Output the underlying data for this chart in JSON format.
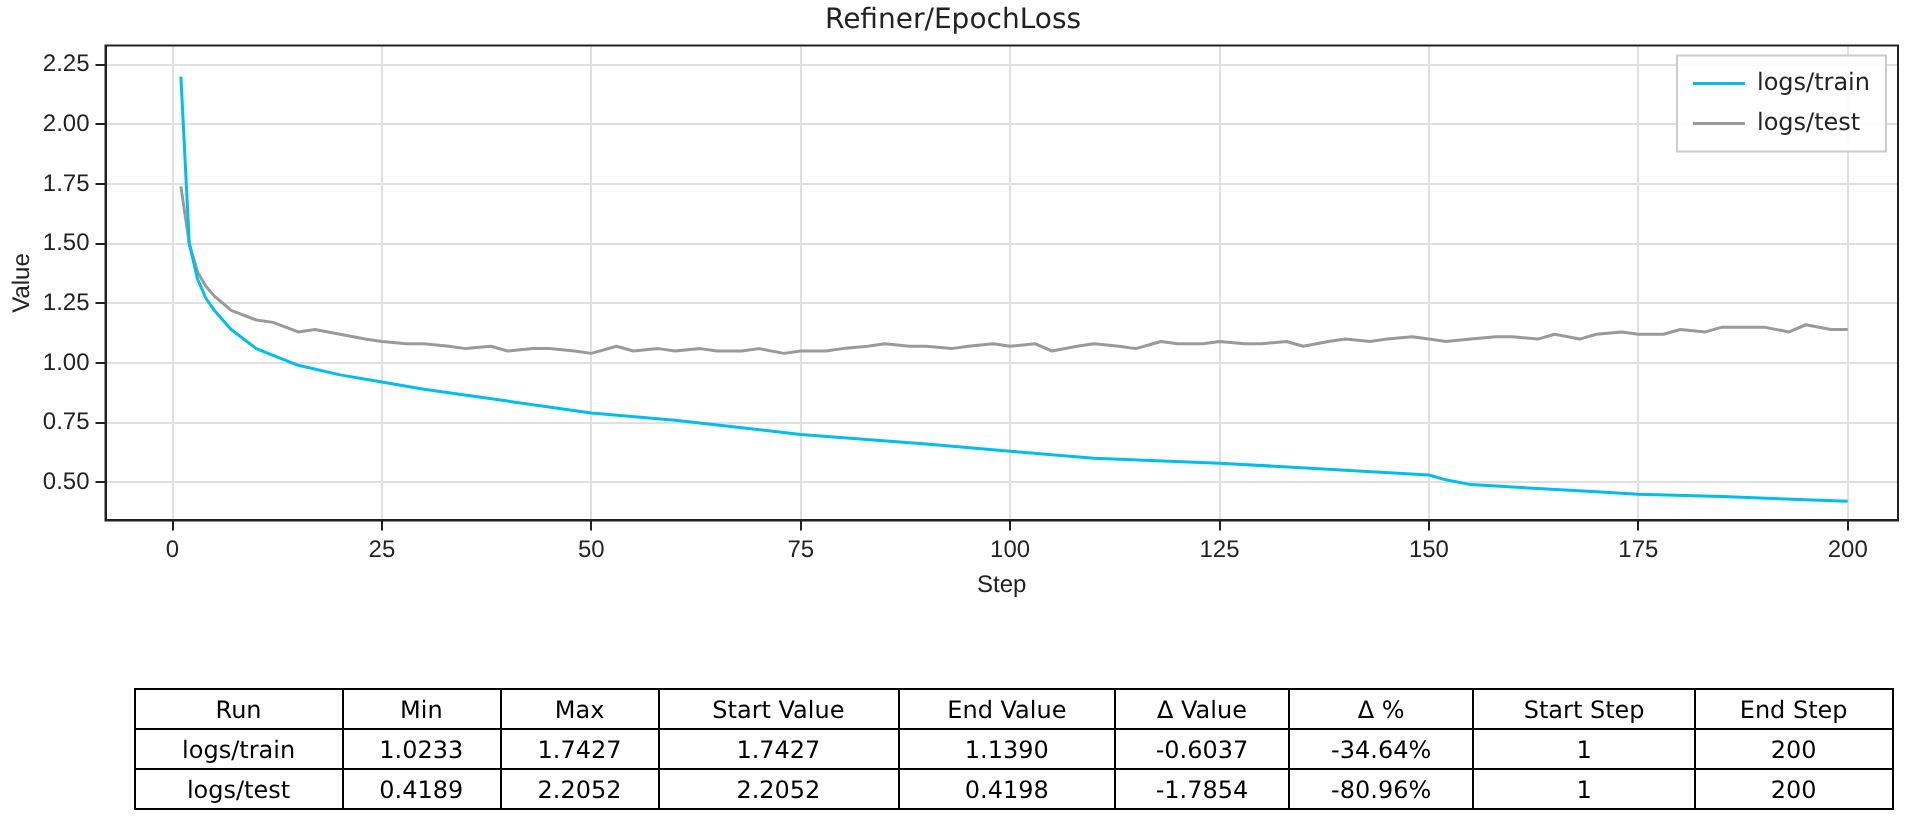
{
  "chart_data": {
    "type": "line",
    "title": "Refiner/EpochLoss",
    "xlabel": "Step",
    "ylabel": "Value",
    "xlim": [
      -8,
      206
    ],
    "xticks": [
      0,
      25,
      50,
      75,
      100,
      125,
      150,
      175,
      200
    ],
    "ylim": [
      0.34,
      2.33
    ],
    "yticks": [
      {
        "value": 0.5,
        "label": "0.50"
      },
      0.75,
      {
        "value": 1,
        "label": "1.00"
      },
      1.25,
      {
        "value": 1.5,
        "label": "1.50"
      },
      1.75,
      {
        "value": 2,
        "label": "2.00"
      },
      2.25
    ],
    "grid": true,
    "legend": "top right",
    "marker": "none",
    "line_style": "solid",
    "series": [
      {
        "name": "logs/train",
        "color": "#00bfef",
        "x": [
          1,
          2,
          3,
          4,
          5,
          7,
          10,
          15,
          20,
          25,
          30,
          40,
          50,
          60,
          75,
          90,
          100,
          110,
          125,
          140,
          150,
          152,
          155,
          160,
          170,
          175,
          185,
          200
        ],
        "values": [
          2.2,
          1.5,
          1.35,
          1.27,
          1.22,
          1.14,
          1.06,
          0.99,
          0.95,
          0.92,
          0.89,
          0.84,
          0.79,
          0.76,
          0.7,
          0.66,
          0.63,
          0.6,
          0.58,
          0.55,
          0.53,
          0.51,
          0.49,
          0.48,
          0.46,
          0.45,
          0.44,
          0.42
        ]
      },
      {
        "name": "logs/test",
        "color": "#9a9a9a",
        "x": [
          1,
          2,
          3,
          4,
          5,
          7,
          10,
          12,
          15,
          17,
          20,
          23,
          25,
          28,
          30,
          33,
          35,
          38,
          40,
          43,
          45,
          48,
          50,
          53,
          55,
          58,
          60,
          63,
          65,
          68,
          70,
          73,
          75,
          78,
          80,
          83,
          85,
          88,
          90,
          93,
          95,
          98,
          100,
          103,
          105,
          108,
          110,
          113,
          115,
          118,
          120,
          123,
          125,
          128,
          130,
          133,
          135,
          138,
          140,
          143,
          145,
          148,
          150,
          152,
          155,
          158,
          160,
          163,
          165,
          168,
          170,
          173,
          175,
          178,
          180,
          183,
          185,
          188,
          190,
          193,
          195,
          198,
          200
        ],
        "values": [
          1.74,
          1.5,
          1.38,
          1.32,
          1.28,
          1.22,
          1.18,
          1.17,
          1.13,
          1.14,
          1.12,
          1.1,
          1.09,
          1.08,
          1.08,
          1.07,
          1.06,
          1.07,
          1.05,
          1.06,
          1.06,
          1.05,
          1.04,
          1.07,
          1.05,
          1.06,
          1.05,
          1.06,
          1.05,
          1.05,
          1.06,
          1.04,
          1.05,
          1.05,
          1.06,
          1.07,
          1.08,
          1.07,
          1.07,
          1.06,
          1.07,
          1.08,
          1.07,
          1.08,
          1.05,
          1.07,
          1.08,
          1.07,
          1.06,
          1.09,
          1.08,
          1.08,
          1.09,
          1.08,
          1.08,
          1.09,
          1.07,
          1.09,
          1.1,
          1.09,
          1.1,
          1.11,
          1.1,
          1.09,
          1.1,
          1.11,
          1.11,
          1.1,
          1.12,
          1.1,
          1.12,
          1.13,
          1.12,
          1.12,
          1.14,
          1.13,
          1.15,
          1.15,
          1.15,
          1.13,
          1.16,
          1.14,
          1.14
        ]
      }
    ],
    "annotations": [
      "Run",
      "Min",
      "Max",
      "Start Value",
      "End Value",
      "Δ Value",
      "Δ %",
      "Start Step",
      "End Step",
      "logs/train",
      "1.0233",
      "1.7427",
      "1.7427",
      "1.1390",
      "-0.6037",
      "-34.64%",
      "1",
      "200",
      "logs/test",
      "0.4189",
      "2.2052",
      "2.2052",
      "0.4198",
      "-1.7854",
      "-80.96%",
      "1",
      "200"
    ]
  }
}
